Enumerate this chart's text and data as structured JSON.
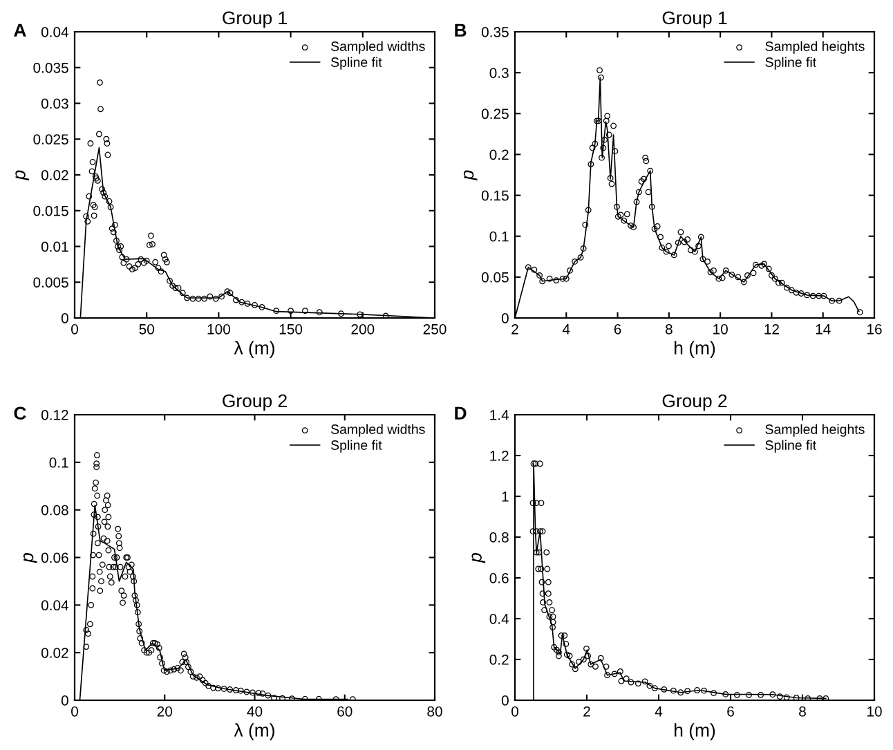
{
  "chart_data": [
    {
      "type": "scatter",
      "title": "Group 1",
      "xlabel": "λ (m)",
      "ylabel": "p",
      "annotations": [
        "A"
      ],
      "xlim": [
        0,
        250
      ],
      "ylim": [
        0,
        0.04
      ],
      "xticks": [
        0,
        50,
        100,
        150,
        200,
        250
      ],
      "yticks": [
        0,
        0.005,
        0.01,
        0.015,
        0.02,
        0.025,
        0.03,
        0.035,
        0.04
      ],
      "legend": "top right",
      "grid": false,
      "series": [
        {
          "name": "Sampled widths",
          "color": "#000000",
          "marker": "circle",
          "x": [
            8,
            9,
            10,
            11,
            12,
            12.5,
            13,
            13.5,
            14,
            14.5,
            15,
            16,
            17,
            17.5,
            18,
            19,
            20,
            21,
            22,
            22.5,
            23,
            24,
            25,
            26,
            27,
            28,
            29,
            30,
            31,
            32,
            33,
            34,
            36,
            38,
            40,
            42,
            44,
            46,
            48,
            50,
            52,
            53,
            54,
            56,
            58,
            60,
            62,
            63,
            64,
            66,
            68,
            70,
            72,
            75,
            78,
            82,
            86,
            90,
            94,
            98,
            102,
            106,
            108,
            112,
            116,
            120,
            125,
            130,
            140,
            150,
            160,
            170,
            185,
            198,
            216
          ],
          "values": [
            0.0142,
            0.0135,
            0.017,
            0.0244,
            0.0205,
            0.0218,
            0.0158,
            0.0143,
            0.0155,
            0.0198,
            0.0195,
            0.0192,
            0.0257,
            0.0329,
            0.0292,
            0.018,
            0.0175,
            0.017,
            0.025,
            0.0244,
            0.0228,
            0.0163,
            0.0155,
            0.0125,
            0.012,
            0.013,
            0.0108,
            0.01,
            0.0095,
            0.01,
            0.0085,
            0.0077,
            0.0082,
            0.0072,
            0.0068,
            0.007,
            0.0075,
            0.0082,
            0.0077,
            0.008,
            0.0102,
            0.0115,
            0.0103,
            0.0078,
            0.007,
            0.0065,
            0.0088,
            0.0082,
            0.0078,
            0.0052,
            0.0045,
            0.0042,
            0.0042,
            0.0035,
            0.0028,
            0.0027,
            0.0027,
            0.0027,
            0.003,
            0.0027,
            0.003,
            0.0037,
            0.0035,
            0.0025,
            0.0022,
            0.002,
            0.0018,
            0.0015,
            0.001,
            0.001,
            0.001,
            0.0008,
            0.0006,
            0.0005,
            0.0003
          ]
        },
        {
          "name": "Spline fit",
          "type": "line",
          "color": "#000000",
          "marker": "none",
          "line_style": "solid",
          "x": [
            4,
            8,
            17,
            20,
            25,
            30,
            35,
            48,
            58,
            63,
            68,
            78,
            100,
            106,
            115,
            130,
            140,
            200,
            250
          ],
          "values": [
            0,
            0.0135,
            0.0238,
            0.0175,
            0.0155,
            0.01,
            0.0082,
            0.0083,
            0.0068,
            0.0065,
            0.0045,
            0.0028,
            0.0028,
            0.0037,
            0.0022,
            0.0015,
            0.0009,
            0.0005,
            0
          ]
        }
      ]
    },
    {
      "type": "scatter",
      "title": "Group 1",
      "xlabel": "h (m)",
      "ylabel": "p",
      "annotations": [
        "B"
      ],
      "xlim": [
        2,
        16
      ],
      "ylim": [
        0,
        0.35
      ],
      "xticks": [
        2,
        4,
        6,
        8,
        10,
        12,
        14,
        16
      ],
      "yticks": [
        0,
        0.05,
        0.1,
        0.15,
        0.2,
        0.25,
        0.3,
        0.35
      ],
      "legend": "top right",
      "grid": false,
      "series": [
        {
          "name": "Sampled heights",
          "color": "#000000",
          "marker": "circle",
          "x": [
            2.52,
            2.75,
            2.96,
            3.07,
            3.35,
            3.61,
            3.86,
            4.0,
            4.14,
            4.33,
            4.56,
            4.67,
            4.74,
            4.86,
            4.96,
            5.02,
            5.12,
            5.19,
            5.25,
            5.3,
            5.35,
            5.38,
            5.44,
            5.49,
            5.56,
            5.6,
            5.67,
            5.72,
            5.77,
            5.84,
            5.9,
            5.97,
            6.02,
            6.12,
            6.25,
            6.37,
            6.51,
            6.62,
            6.74,
            6.83,
            6.93,
            7.02,
            7.08,
            7.11,
            7.2,
            7.27,
            7.34,
            7.44,
            7.55,
            7.67,
            7.73,
            7.9,
            7.99,
            8.2,
            8.36,
            8.46,
            8.6,
            8.72,
            8.85,
            9.01,
            9.15,
            9.25,
            9.32,
            9.5,
            9.62,
            9.74,
            9.94,
            10.08,
            10.22,
            10.45,
            10.69,
            10.92,
            11.06,
            11.29,
            11.38,
            11.61,
            11.71,
            11.89,
            12.0,
            12.13,
            12.27,
            12.4,
            12.59,
            12.78,
            12.96,
            13.15,
            13.38,
            13.61,
            13.84,
            14.03,
            14.35,
            14.63,
            15.44
          ],
          "values": [
            0.062,
            0.059,
            0.052,
            0.045,
            0.048,
            0.046,
            0.048,
            0.048,
            0.058,
            0.069,
            0.074,
            0.085,
            0.114,
            0.132,
            0.188,
            0.208,
            0.213,
            0.241,
            0.241,
            0.303,
            0.294,
            0.196,
            0.208,
            0.218,
            0.241,
            0.247,
            0.224,
            0.171,
            0.164,
            0.235,
            0.204,
            0.136,
            0.124,
            0.126,
            0.119,
            0.127,
            0.113,
            0.111,
            0.142,
            0.154,
            0.167,
            0.17,
            0.196,
            0.192,
            0.154,
            0.18,
            0.136,
            0.109,
            0.112,
            0.099,
            0.086,
            0.081,
            0.088,
            0.077,
            0.092,
            0.105,
            0.093,
            0.096,
            0.083,
            0.081,
            0.088,
            0.099,
            0.072,
            0.069,
            0.056,
            0.058,
            0.048,
            0.049,
            0.058,
            0.053,
            0.05,
            0.044,
            0.052,
            0.055,
            0.065,
            0.064,
            0.066,
            0.06,
            0.052,
            0.048,
            0.043,
            0.043,
            0.037,
            0.034,
            0.031,
            0.03,
            0.028,
            0.027,
            0.027,
            0.027,
            0.021,
            0.021,
            0.007
          ]
        },
        {
          "name": "Spline fit",
          "type": "line",
          "color": "#000000",
          "marker": "none",
          "line_style": "solid",
          "x": [
            2.0,
            2.52,
            2.96,
            3.07,
            3.61,
            4.0,
            4.33,
            4.56,
            4.67,
            4.86,
            4.96,
            5.12,
            5.19,
            5.25,
            5.32,
            5.4,
            5.54,
            5.6,
            5.72,
            5.84,
            5.97,
            6.02,
            6.51,
            6.62,
            6.74,
            6.83,
            7.02,
            7.27,
            7.34,
            7.44,
            7.73,
            7.9,
            8.2,
            8.46,
            8.72,
            9.01,
            9.25,
            9.32,
            9.62,
            9.94,
            10.22,
            10.92,
            11.38,
            11.71,
            12.13,
            12.78,
            13.38,
            14.03,
            14.35,
            14.63,
            15.0,
            15.2,
            15.4
          ],
          "values": [
            0,
            0.062,
            0.052,
            0.045,
            0.047,
            0.048,
            0.069,
            0.074,
            0.085,
            0.13,
            0.19,
            0.213,
            0.241,
            0.241,
            0.294,
            0.196,
            0.24,
            0.23,
            0.17,
            0.224,
            0.136,
            0.124,
            0.113,
            0.111,
            0.142,
            0.154,
            0.166,
            0.18,
            0.136,
            0.109,
            0.086,
            0.081,
            0.077,
            0.1,
            0.09,
            0.081,
            0.099,
            0.072,
            0.056,
            0.048,
            0.058,
            0.044,
            0.065,
            0.066,
            0.048,
            0.034,
            0.028,
            0.027,
            0.021,
            0.021,
            0.026,
            0.02,
            0.008
          ]
        }
      ]
    },
    {
      "type": "scatter",
      "title": "Group 2",
      "xlabel": "λ (m)",
      "ylabel": "p",
      "annotations": [
        "C"
      ],
      "xlim": [
        0,
        80
      ],
      "ylim": [
        0,
        0.12
      ],
      "xticks": [
        0,
        20,
        40,
        60,
        80
      ],
      "yticks": [
        0,
        0.02,
        0.04,
        0.06,
        0.08,
        0.1,
        0.12
      ],
      "legend": "top right",
      "grid": false,
      "series": [
        {
          "name": "Sampled widths",
          "color": "#000000",
          "marker": "circle",
          "x": [
            2.58,
            2.58,
            3.0,
            3.43,
            3.64,
            3.96,
            3.96,
            4.07,
            4.17,
            4.28,
            4.33,
            4.49,
            4.7,
            4.86,
            4.97,
            4.86,
            5.02,
            5.12,
            5.23,
            5.12,
            5.39,
            5.55,
            5.65,
            5.92,
            6.19,
            6.45,
            6.61,
            6.71,
            6.98,
            7.24,
            7.4,
            7.51,
            7.35,
            7.24,
            7.51,
            7.67,
            7.88,
            8.19,
            8.56,
            8.83,
            9.09,
            9.35,
            9.62,
            9.78,
            9.88,
            9.99,
            10.15,
            10.41,
            10.68,
            10.94,
            11.21,
            11.48,
            11.74,
            12.0,
            12.27,
            12.64,
            12.96,
            13.17,
            13.33,
            13.59,
            13.86,
            14.02,
            14.23,
            14.39,
            14.55,
            14.92,
            15.45,
            15.98,
            16.51,
            17.04,
            17.4,
            17.83,
            18.36,
            18.78,
            18.99,
            19.42,
            19.84,
            20.47,
            21.27,
            22.07,
            22.86,
            23.55,
            23.92,
            24.29,
            24.6,
            24.82,
            25.24,
            25.77,
            26.3,
            27.09,
            27.78,
            28.42,
            29.05,
            29.74,
            30.8,
            31.86,
            33.18,
            34.5,
            35.83,
            36.89,
            38.21,
            39.53,
            40.86,
            41.76,
            42.98,
            44.3,
            46.15,
            48.27,
            51.18,
            54.25,
            58.06,
            61.77
          ],
          "values": [
            0.0225,
            0.0295,
            0.028,
            0.032,
            0.04,
            0.047,
            0.052,
            0.061,
            0.07,
            0.078,
            0.0825,
            0.089,
            0.0915,
            0.0995,
            0.103,
            0.098,
            0.086,
            0.077,
            0.073,
            0.066,
            0.061,
            0.054,
            0.046,
            0.05,
            0.057,
            0.068,
            0.075,
            0.08,
            0.084,
            0.086,
            0.082,
            0.077,
            0.073,
            0.067,
            0.063,
            0.056,
            0.052,
            0.0495,
            0.056,
            0.06,
            0.056,
            0.06,
            0.072,
            0.069,
            0.066,
            0.064,
            0.056,
            0.046,
            0.041,
            0.044,
            0.052,
            0.06,
            0.06,
            0.056,
            0.054,
            0.057,
            0.052,
            0.05,
            0.044,
            0.042,
            0.04,
            0.037,
            0.032,
            0.029,
            0.026,
            0.024,
            0.021,
            0.02,
            0.02,
            0.021,
            0.024,
            0.024,
            0.0235,
            0.022,
            0.018,
            0.0155,
            0.0125,
            0.012,
            0.0125,
            0.013,
            0.0135,
            0.0125,
            0.016,
            0.0195,
            0.018,
            0.016,
            0.014,
            0.012,
            0.01,
            0.0095,
            0.01,
            0.0085,
            0.0072,
            0.006,
            0.0052,
            0.005,
            0.0048,
            0.0045,
            0.0042,
            0.004,
            0.0035,
            0.0032,
            0.003,
            0.0028,
            0.002,
            0.001,
            0.0008,
            0.0007,
            0.0005,
            0.0005,
            0.0004,
            0.0004
          ]
        },
        {
          "name": "Spline fit",
          "type": "line",
          "color": "#000000",
          "marker": "none",
          "line_style": "solid",
          "x": [
            1.15,
            4.5,
            5.65,
            6.7,
            8.83,
            9.9,
            11.48,
            13.06,
            13.33,
            14.39,
            15.71,
            17.3,
            18.89,
            19.95,
            23.12,
            24.71,
            26.3,
            29.47,
            32.65,
            42.71,
            50.65,
            60.7
          ],
          "values": [
            0,
            0.082,
            0.067,
            0.066,
            0.0635,
            0.05,
            0.058,
            0.055,
            0.046,
            0.03,
            0.021,
            0.024,
            0.021,
            0.0125,
            0.0135,
            0.017,
            0.0105,
            0.0065,
            0.005,
            0.002,
            0.0005,
            0.0004
          ]
        }
      ]
    },
    {
      "type": "scatter",
      "title": "Group 2",
      "xlabel": "h (m)",
      "ylabel": "p",
      "annotations": [
        "D"
      ],
      "xlim": [
        0,
        10
      ],
      "ylim": [
        0,
        1.4
      ],
      "xticks": [
        0,
        2,
        4,
        6,
        8,
        10
      ],
      "yticks": [
        0,
        0.2,
        0.4,
        0.6,
        0.8,
        1,
        1.2,
        1.4
      ],
      "legend": "top right",
      "grid": false,
      "series": [
        {
          "name": "Sampled heights",
          "color": "#000000",
          "marker": "circle",
          "x": [
            0.52,
            0.57,
            0.7,
            0.5,
            0.6,
            0.73,
            0.5,
            0.6,
            0.7,
            0.77,
            0.6,
            0.67,
            0.88,
            0.65,
            0.73,
            0.9,
            0.75,
            0.93,
            0.77,
            0.93,
            0.78,
            0.96,
            0.82,
            1.03,
            0.96,
            1.06,
            1.06,
            1.05,
            1.09,
            1.16,
            1.22,
            1.22,
            1.29,
            1.38,
            1.42,
            1.45,
            1.52,
            1.59,
            1.68,
            1.78,
            1.91,
            1.99,
            2.03,
            2.11,
            2.24,
            2.39,
            2.54,
            2.57,
            2.77,
            2.93,
            2.96,
            3.1,
            3.23,
            3.43,
            3.62,
            3.75,
            3.89,
            4.15,
            4.41,
            4.61,
            4.8,
            5.07,
            5.26,
            5.53,
            5.86,
            6.18,
            6.51,
            6.84,
            7.17,
            7.37,
            7.56,
            7.83,
            8.15,
            8.48,
            8.65
          ],
          "values": [
            1.16,
            1.16,
            1.16,
            0.967,
            0.967,
            0.967,
            0.828,
            0.828,
            0.828,
            0.828,
            0.725,
            0.725,
            0.725,
            0.644,
            0.644,
            0.644,
            0.579,
            0.579,
            0.523,
            0.523,
            0.48,
            0.48,
            0.442,
            0.442,
            0.41,
            0.41,
            0.383,
            0.358,
            0.26,
            0.247,
            0.235,
            0.217,
            0.317,
            0.317,
            0.276,
            0.223,
            0.217,
            0.176,
            0.153,
            0.188,
            0.2,
            0.253,
            0.217,
            0.176,
            0.165,
            0.206,
            0.165,
            0.123,
            0.129,
            0.141,
            0.094,
            0.106,
            0.088,
            0.082,
            0.092,
            0.071,
            0.059,
            0.053,
            0.047,
            0.038,
            0.045,
            0.049,
            0.047,
            0.035,
            0.029,
            0.026,
            0.026,
            0.026,
            0.028,
            0.018,
            0.014,
            0.012,
            0.009,
            0.009,
            0.009
          ]
        },
        {
          "name": "Spline fit",
          "type": "line",
          "color": "#000000",
          "marker": "none",
          "line_style": "solid",
          "x": [
            0.52,
            0.52,
            0.57,
            0.6,
            0.7,
            0.83,
            1.03,
            1.09,
            1.26,
            1.32,
            1.45,
            1.68,
            1.91,
            2.01,
            2.11,
            2.39,
            2.57,
            2.93,
            3.03,
            3.62,
            3.89,
            4.61,
            5.13,
            5.86,
            7.17,
            7.83,
            8.65
          ],
          "values": [
            0,
            1.16,
            0.83,
            0.725,
            0.828,
            0.47,
            0.37,
            0.26,
            0.23,
            0.32,
            0.223,
            0.156,
            0.2,
            0.247,
            0.176,
            0.2,
            0.123,
            0.135,
            0.094,
            0.088,
            0.059,
            0.038,
            0.049,
            0.029,
            0.028,
            0.012,
            0.009
          ]
        }
      ]
    }
  ]
}
